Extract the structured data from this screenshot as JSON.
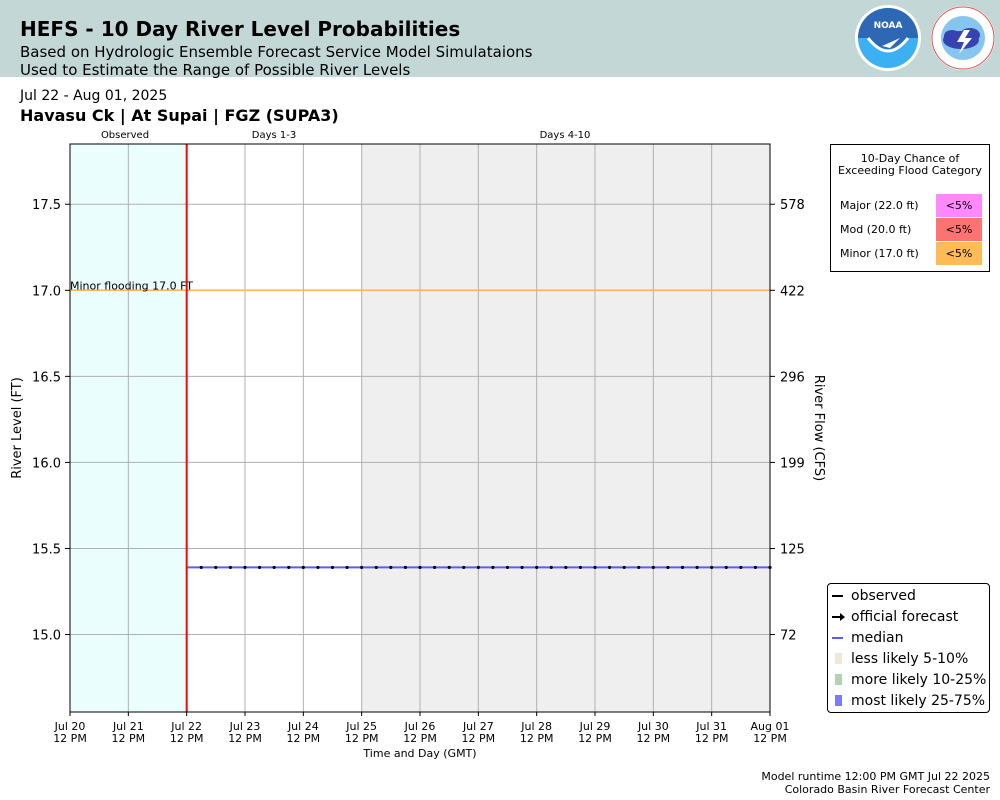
{
  "header": {
    "title": "HEFS - 10 Day River Level Probabilities",
    "subtitle_1": "Based on Hydrologic Ensemble Forecast Service Model Simulataions",
    "subtitle_2": "Used to Estimate the Range of Possible River Levels",
    "noaa_logo": {
      "icon": "noaa-logo",
      "text": "NOAA"
    },
    "nws_logo": {
      "icon": "nws-logo",
      "text": "NATIONAL WEATHER SERVICE"
    }
  },
  "date_range": "Jul 22 - Aug 01, 2025",
  "station": "Havasu Ck | At Supai | FGZ (SUPA3)",
  "chart_data": {
    "type": "line",
    "period_labels": [
      "Observed",
      "Days 1-3",
      "Days 4-10"
    ],
    "x_ticks": [
      [
        "Jul 20",
        "12 PM"
      ],
      [
        "Jul 21",
        "12 PM"
      ],
      [
        "Jul 22",
        "12 PM"
      ],
      [
        "Jul 23",
        "12 PM"
      ],
      [
        "Jul 24",
        "12 PM"
      ],
      [
        "Jul 25",
        "12 PM"
      ],
      [
        "Jul 26",
        "12 PM"
      ],
      [
        "Jul 27",
        "12 PM"
      ],
      [
        "Jul 28",
        "12 PM"
      ],
      [
        "Jul 29",
        "12 PM"
      ],
      [
        "Jul 30",
        "12 PM"
      ],
      [
        "Jul 31",
        "12 PM"
      ],
      [
        "Aug 01",
        "12 PM"
      ]
    ],
    "xlabel": "Time and Day (GMT)",
    "ylabel": "River Level (FT)",
    "y2label": "River Flow (CFS)",
    "ylim": [
      14.55,
      17.85
    ],
    "y_ticks": [
      15.0,
      15.5,
      16.0,
      16.5,
      17.0,
      17.5
    ],
    "y_tick_labels": [
      "15.0",
      "15.5",
      "16.0",
      "16.5",
      "17.0",
      "17.5"
    ],
    "y2_tick_labels": [
      "72",
      "125",
      "199",
      "296",
      "422",
      "578"
    ],
    "grid": true,
    "observed_period_end_day": 2,
    "days_4_10_start_day": 5,
    "forecast_start_day": 2,
    "flood_line": {
      "label": "Minor flooding 17.0 FT",
      "value": 17.0,
      "color": "#f0b660"
    },
    "median": {
      "name": "median",
      "value": 15.39,
      "start_day": 2,
      "end_day": 12,
      "points_per_day": 4
    },
    "colors": {
      "observed_bg": "#ebfefe",
      "days_4_10_bg": "#efefef",
      "forecast_divider": "#ff0000",
      "median": "#5a5aff",
      "forecast_points": "#000000",
      "grid": "#b0b0b0"
    }
  },
  "flood_legend": {
    "title": "10-Day Chance of Exceeding Flood Category",
    "rows": [
      {
        "label": "Major (22.0 ft)",
        "value": "<5%",
        "color": "#ff88ff"
      },
      {
        "label": "Mod (20.0 ft)",
        "value": "<5%",
        "color": "#ff7272"
      },
      {
        "label": "Minor (17.0 ft)",
        "value": "<5%",
        "color": "#ffbb55"
      }
    ]
  },
  "series_legend": [
    {
      "label": "observed",
      "symbol": "line",
      "color": "#000000"
    },
    {
      "label": "official forecast",
      "symbol": "arrow-line",
      "color": "#000000"
    },
    {
      "label": "median",
      "symbol": "line",
      "color": "#5a5aff"
    },
    {
      "label": "less likely 5-10%",
      "symbol": "patch",
      "color": "#eee8dc"
    },
    {
      "label": "more likely 10-25%",
      "symbol": "patch",
      "color": "#b2d3b2"
    },
    {
      "label": "most likely 25-75%",
      "symbol": "patch",
      "color": "#7b7bff"
    }
  ],
  "footer": {
    "runtime": "Model runtime 12:00 PM GMT Jul 22 2025",
    "center": "Colorado Basin River Forecast Center"
  }
}
